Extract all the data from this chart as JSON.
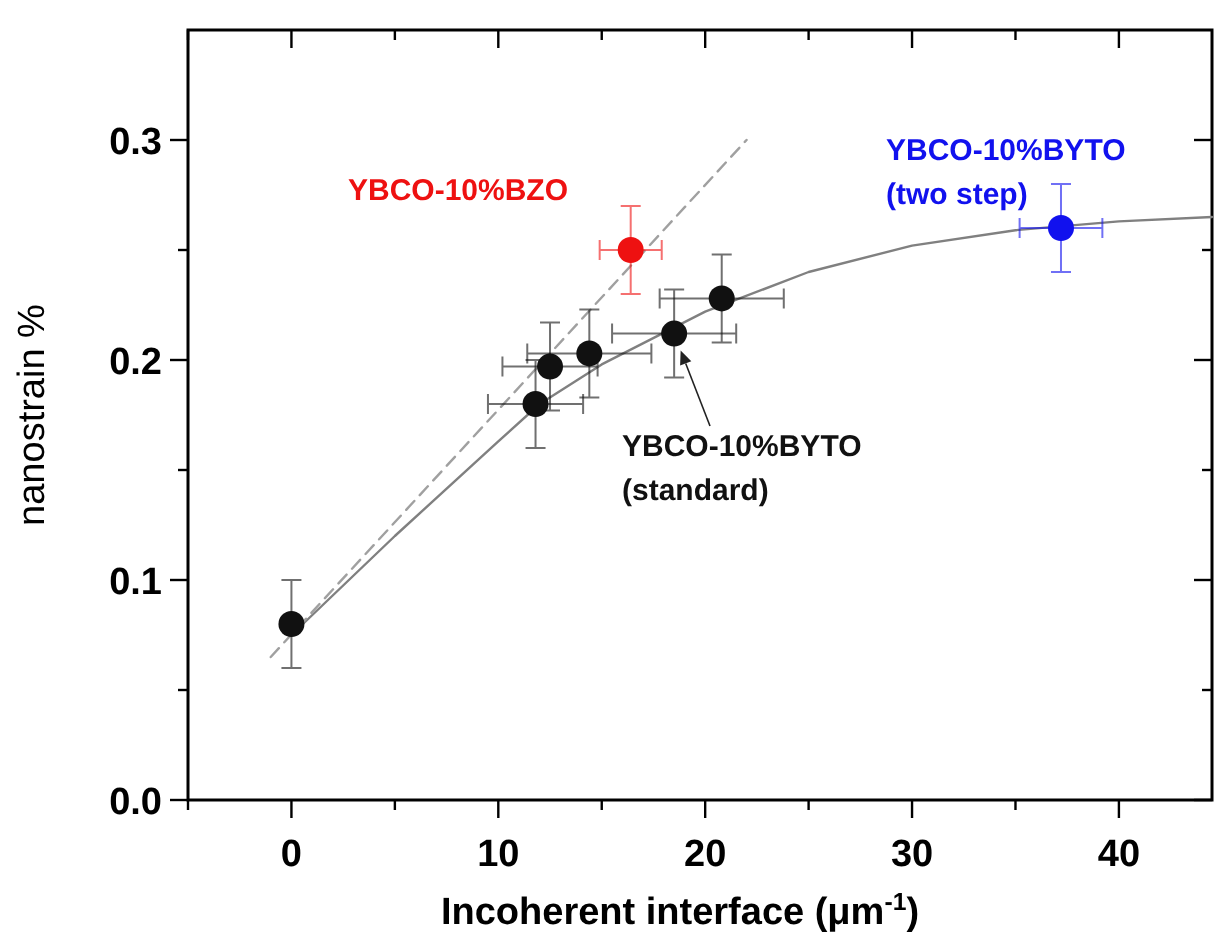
{
  "chart_data": {
    "type": "scatter",
    "xlabel": "Incoherent interface (μm$^{-1}$)",
    "ylabel": "nanostrain %",
    "xlim": [
      -5,
      44.5
    ],
    "ylim": [
      0,
      0.35
    ],
    "xticks": [
      {
        "value": -5,
        "label": null
      },
      0,
      {
        "value": 5,
        "label": null
      },
      10,
      {
        "value": 15,
        "label": null
      },
      20,
      {
        "value": 25,
        "label": null
      },
      30,
      {
        "value": 35,
        "label": null
      },
      40
    ],
    "yticks": [
      {
        "value": 0,
        "label": "0.0"
      },
      {
        "value": 0.05,
        "label": null
      },
      0.1,
      {
        "value": 0.15,
        "label": null
      },
      0.2,
      {
        "value": 0.25,
        "label": null
      },
      0.3
    ],
    "grid": false,
    "marker": "circle",
    "series": [
      {
        "type": "line",
        "color": "#808080",
        "line_style": "solid",
        "marker": "none",
        "x": [
          0,
          5,
          10,
          12,
          15,
          20,
          25,
          30,
          35,
          40,
          44.5
        ],
        "values": [
          0.075,
          0.12,
          0.163,
          0.18,
          0.198,
          0.222,
          0.24,
          0.252,
          0.259,
          0.263,
          0.265
        ]
      },
      {
        "type": "line",
        "color": "#a0a0a0",
        "line_style": "dashed",
        "marker": "none",
        "x": [
          -1,
          22
        ],
        "values": [
          0.065,
          0.3
        ]
      },
      {
        "name": "YBCO-10%BYTO (standard)",
        "color": "#111111",
        "x": [
          0,
          11.8,
          12.5,
          14.4,
          18.5,
          20.8
        ],
        "values": [
          0.08,
          0.18,
          0.197,
          0.203,
          0.212,
          0.228
        ],
        "errors": [
          0.02,
          0.02,
          0.02,
          0.02,
          0.02,
          0.02
        ],
        "xerrors": [
          null,
          2.3,
          2.3,
          3,
          3,
          3
        ]
      },
      {
        "name": "YBCO-10%BZO",
        "color": "#ee1111",
        "x": [
          16.4
        ],
        "values": [
          0.25
        ],
        "errors": [
          0.02
        ],
        "xerrors": [
          1.5
        ]
      },
      {
        "name": "YBCO-10%BYTO (two step)",
        "color": "#1111ee",
        "x": [
          37.2
        ],
        "values": [
          0.26
        ],
        "errors": [
          0.02
        ],
        "xerrors": [
          2
        ]
      }
    ]
  }
}
